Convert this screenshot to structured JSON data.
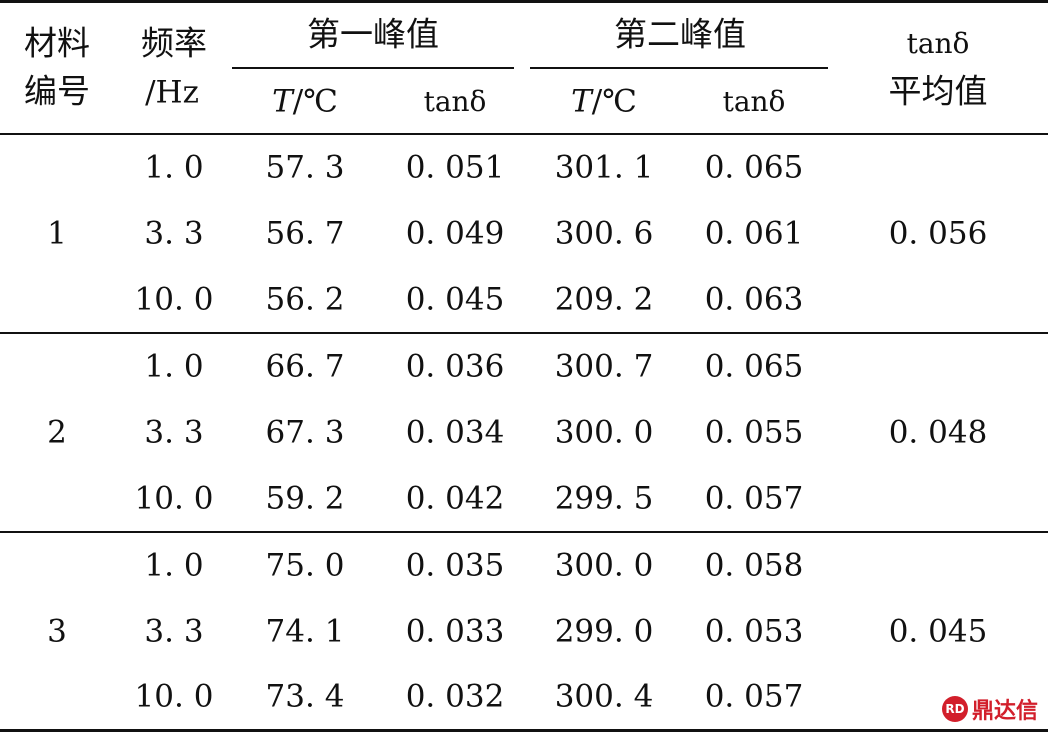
{
  "header": {
    "material_no_line1": "材料",
    "material_no_line2": "编号",
    "freq_line1": "频率",
    "freq_line2": "/Hz",
    "peak1": "第一峰值",
    "peak2": "第二峰值",
    "tan_avg_line1": "tanδ",
    "tan_avg_line2": "平均值",
    "t_label": "T",
    "t_unit": "/℃",
    "tan_label": "tanδ"
  },
  "groups": [
    {
      "id": "1",
      "avg": "0. 056",
      "rows": [
        {
          "freq": "1. 0",
          "t1": "57. 3",
          "tan1": "0. 051",
          "t2": "301. 1",
          "tan2": "0. 065"
        },
        {
          "freq": "3. 3",
          "t1": "56. 7",
          "tan1": "0. 049",
          "t2": "300. 6",
          "tan2": "0. 061"
        },
        {
          "freq": "10. 0",
          "t1": "56. 2",
          "tan1": "0. 045",
          "t2": "209. 2",
          "tan2": "0. 063"
        }
      ]
    },
    {
      "id": "2",
      "avg": "0. 048",
      "rows": [
        {
          "freq": "1. 0",
          "t1": "66. 7",
          "tan1": "0. 036",
          "t2": "300. 7",
          "tan2": "0. 065"
        },
        {
          "freq": "3. 3",
          "t1": "67. 3",
          "tan1": "0. 034",
          "t2": "300. 0",
          "tan2": "0. 055"
        },
        {
          "freq": "10. 0",
          "t1": "59. 2",
          "tan1": "0. 042",
          "t2": "299. 5",
          "tan2": "0. 057"
        }
      ]
    },
    {
      "id": "3",
      "avg": "0. 045",
      "rows": [
        {
          "freq": "1. 0",
          "t1": "75. 0",
          "tan1": "0. 035",
          "t2": "300. 0",
          "tan2": "0. 058"
        },
        {
          "freq": "3. 3",
          "t1": "74. 1",
          "tan1": "0. 033",
          "t2": "299. 0",
          "tan2": "0. 053"
        },
        {
          "freq": "10. 0",
          "t1": "73. 4",
          "tan1": "0. 032",
          "t2": "300. 4",
          "tan2": "0. 057"
        }
      ]
    }
  ],
  "watermark": {
    "text": "鼎达信",
    "mark": "RD"
  }
}
